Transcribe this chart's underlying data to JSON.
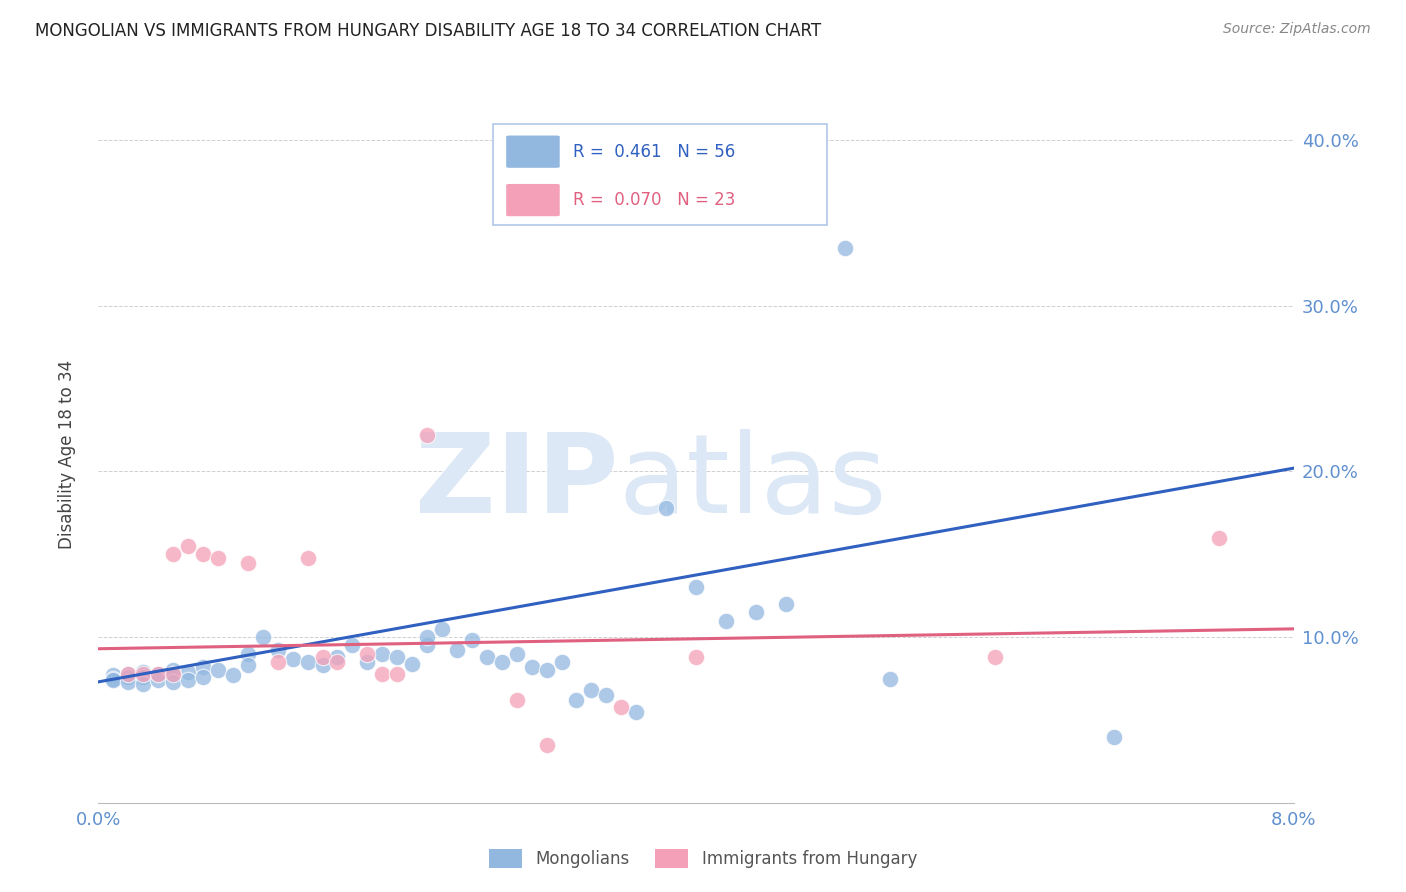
{
  "title": "MONGOLIAN VS IMMIGRANTS FROM HUNGARY DISABILITY AGE 18 TO 34 CORRELATION CHART",
  "source": "Source: ZipAtlas.com",
  "ylabel": "Disability Age 18 to 34",
  "xlim": [
    0.0,
    0.08
  ],
  "ylim": [
    0.0,
    0.42
  ],
  "yticks": [
    0.0,
    0.1,
    0.2,
    0.3,
    0.4
  ],
  "ytick_labels": [
    "",
    "10.0%",
    "20.0%",
    "30.0%",
    "40.0%"
  ],
  "xticks": [
    0.0,
    0.02,
    0.04,
    0.06,
    0.08
  ],
  "xtick_labels": [
    "0.0%",
    "",
    "",
    "",
    "8.0%"
  ],
  "r_blue": 0.461,
  "n_blue": 56,
  "r_pink": 0.07,
  "n_pink": 23,
  "legend_label_blue": "Mongolians",
  "legend_label_pink": "Immigrants from Hungary",
  "background_color": "#ffffff",
  "grid_color": "#d0d0d0",
  "blue_color": "#92b8e0",
  "pink_color": "#f4a0b8",
  "blue_line_color": "#3060c0",
  "pink_line_color": "#e06080",
  "axis_color": "#6090d0",
  "blue_scatter": [
    [
      0.001,
      0.077
    ],
    [
      0.001,
      0.075
    ],
    [
      0.001,
      0.074
    ],
    [
      0.002,
      0.078
    ],
    [
      0.002,
      0.076
    ],
    [
      0.002,
      0.073
    ],
    [
      0.003,
      0.079
    ],
    [
      0.003,
      0.076
    ],
    [
      0.003,
      0.072
    ],
    [
      0.004,
      0.078
    ],
    [
      0.004,
      0.074
    ],
    [
      0.005,
      0.08
    ],
    [
      0.005,
      0.077
    ],
    [
      0.005,
      0.073
    ],
    [
      0.006,
      0.079
    ],
    [
      0.006,
      0.074
    ],
    [
      0.007,
      0.082
    ],
    [
      0.007,
      0.076
    ],
    [
      0.008,
      0.08
    ],
    [
      0.009,
      0.077
    ],
    [
      0.01,
      0.09
    ],
    [
      0.01,
      0.083
    ],
    [
      0.011,
      0.1
    ],
    [
      0.012,
      0.092
    ],
    [
      0.013,
      0.087
    ],
    [
      0.014,
      0.085
    ],
    [
      0.015,
      0.083
    ],
    [
      0.016,
      0.088
    ],
    [
      0.017,
      0.095
    ],
    [
      0.018,
      0.085
    ],
    [
      0.019,
      0.09
    ],
    [
      0.02,
      0.088
    ],
    [
      0.021,
      0.084
    ],
    [
      0.022,
      0.095
    ],
    [
      0.022,
      0.1
    ],
    [
      0.023,
      0.105
    ],
    [
      0.024,
      0.092
    ],
    [
      0.025,
      0.098
    ],
    [
      0.026,
      0.088
    ],
    [
      0.027,
      0.085
    ],
    [
      0.028,
      0.09
    ],
    [
      0.029,
      0.082
    ],
    [
      0.03,
      0.08
    ],
    [
      0.031,
      0.085
    ],
    [
      0.032,
      0.062
    ],
    [
      0.033,
      0.068
    ],
    [
      0.034,
      0.065
    ],
    [
      0.036,
      0.055
    ],
    [
      0.038,
      0.178
    ],
    [
      0.04,
      0.13
    ],
    [
      0.042,
      0.11
    ],
    [
      0.044,
      0.115
    ],
    [
      0.046,
      0.12
    ],
    [
      0.05,
      0.335
    ],
    [
      0.053,
      0.075
    ],
    [
      0.068,
      0.04
    ]
  ],
  "pink_scatter": [
    [
      0.002,
      0.078
    ],
    [
      0.003,
      0.078
    ],
    [
      0.004,
      0.078
    ],
    [
      0.005,
      0.078
    ],
    [
      0.005,
      0.15
    ],
    [
      0.006,
      0.155
    ],
    [
      0.007,
      0.15
    ],
    [
      0.008,
      0.148
    ],
    [
      0.01,
      0.145
    ],
    [
      0.012,
      0.085
    ],
    [
      0.014,
      0.148
    ],
    [
      0.015,
      0.088
    ],
    [
      0.016,
      0.085
    ],
    [
      0.018,
      0.09
    ],
    [
      0.019,
      0.078
    ],
    [
      0.02,
      0.078
    ],
    [
      0.022,
      0.222
    ],
    [
      0.028,
      0.062
    ],
    [
      0.03,
      0.035
    ],
    [
      0.035,
      0.058
    ],
    [
      0.04,
      0.088
    ],
    [
      0.06,
      0.088
    ],
    [
      0.075,
      0.16
    ]
  ],
  "blue_trendline": [
    [
      0.0,
      0.073
    ],
    [
      0.08,
      0.202
    ]
  ],
  "pink_trendline": [
    [
      0.0,
      0.093
    ],
    [
      0.08,
      0.105
    ]
  ]
}
